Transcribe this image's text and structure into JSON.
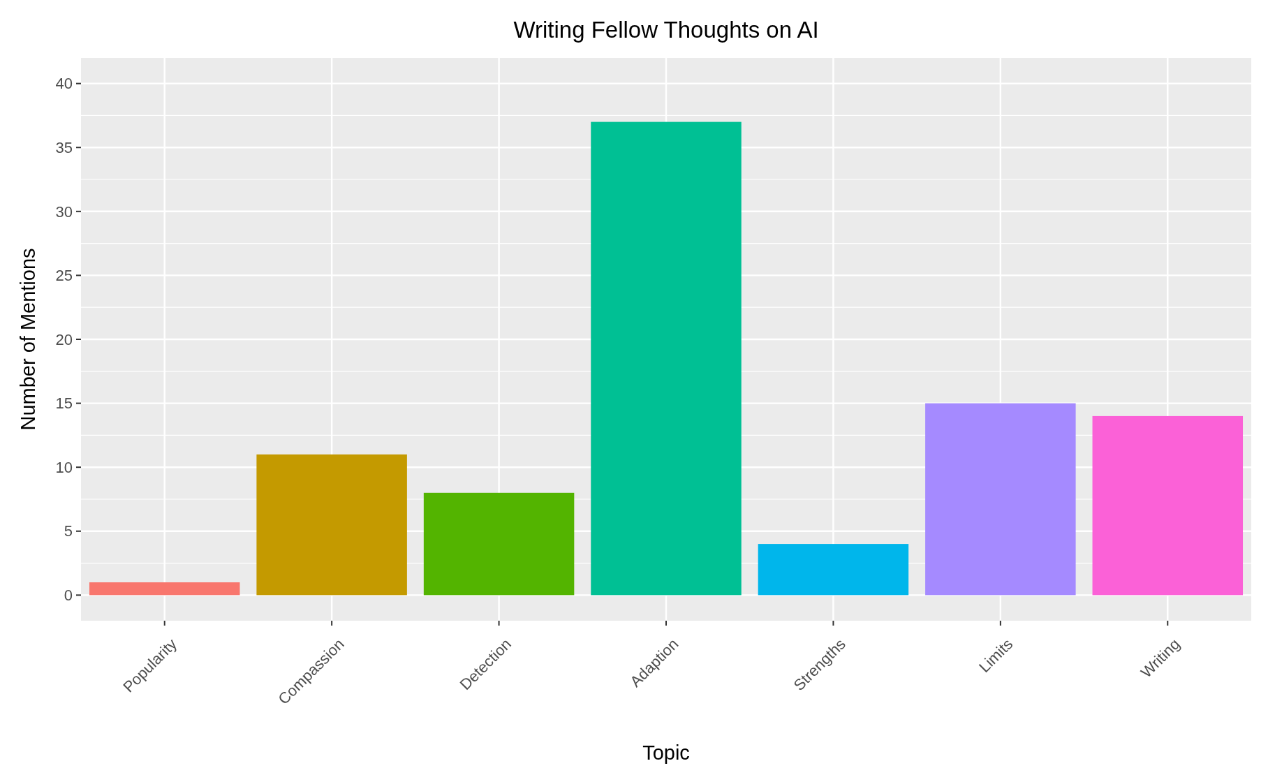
{
  "chart_data": {
    "type": "bar",
    "title": "Writing Fellow Thoughts on AI",
    "xlabel": "Topic",
    "ylabel": "Number of Mentions",
    "categories": [
      "Popularity",
      "Compassion",
      "Detection",
      "Adaption",
      "Strengths",
      "Limits",
      "Writing"
    ],
    "values": [
      1,
      11,
      8,
      37,
      4,
      15,
      14
    ],
    "colors": [
      "#f8766d",
      "#c49a00",
      "#53b400",
      "#00c094",
      "#00b6eb",
      "#a58aff",
      "#fb61d7"
    ],
    "ylim": [
      -2,
      42
    ],
    "yticks": [
      0,
      5,
      10,
      15,
      20,
      25,
      30,
      35,
      40
    ],
    "grid": true
  }
}
